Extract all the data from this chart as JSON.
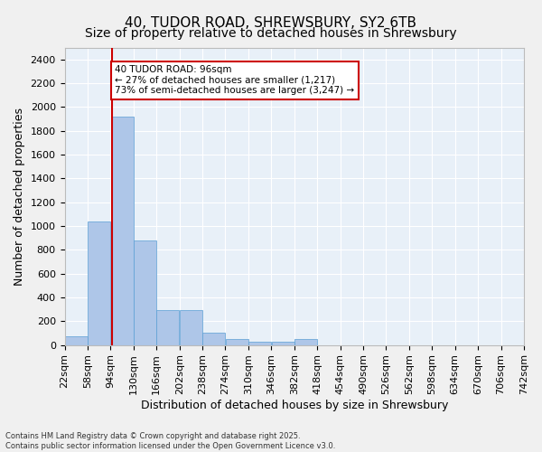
{
  "title_line1": "40, TUDOR ROAD, SHREWSBURY, SY2 6TB",
  "title_line2": "Size of property relative to detached houses in Shrewsbury",
  "xlabel": "Distribution of detached houses by size in Shrewsbury",
  "ylabel": "Number of detached properties",
  "bar_color": "#aec6e8",
  "bar_edge_color": "#5a9fd4",
  "background_color": "#e8f0f8",
  "grid_color": "#ffffff",
  "vline_x": 96,
  "vline_color": "#cc0000",
  "annotation_text": "40 TUDOR ROAD: 96sqm\n← 27% of detached houses are smaller (1,217)\n73% of semi-detached houses are larger (3,247) →",
  "annotation_box_color": "#ffffff",
  "annotation_box_edge": "#cc0000",
  "bins": [
    22,
    58,
    94,
    130,
    166,
    202,
    238,
    274,
    310,
    346,
    382,
    418,
    454,
    490,
    526,
    562,
    598,
    634,
    670,
    706,
    742
  ],
  "bar_heights": [
    75,
    1040,
    1920,
    880,
    290,
    290,
    100,
    50,
    30,
    25,
    50,
    0,
    0,
    0,
    0,
    0,
    0,
    0,
    0,
    0
  ],
  "ylim": [
    0,
    2500
  ],
  "yticks": [
    0,
    200,
    400,
    600,
    800,
    1000,
    1200,
    1400,
    1600,
    1800,
    2000,
    2200,
    2400
  ],
  "footer_text": "Contains HM Land Registry data © Crown copyright and database right 2025.\nContains public sector information licensed under the Open Government Licence v3.0.",
  "title_fontsize": 11,
  "subtitle_fontsize": 10,
  "axis_label_fontsize": 9,
  "tick_fontsize": 8
}
